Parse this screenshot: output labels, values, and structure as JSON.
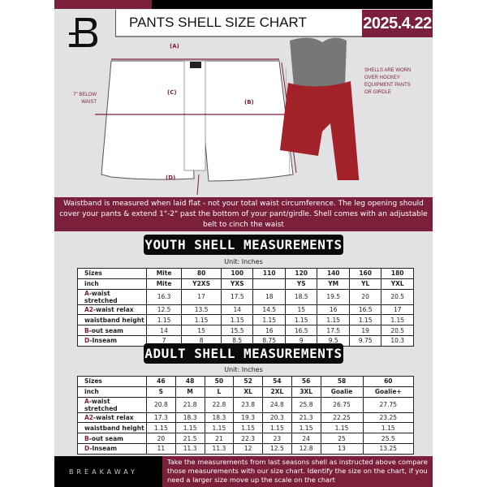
{
  "header": {
    "title": "PANTS SHELL SIZE CHART",
    "date": "2025.4.22"
  },
  "diagram": {
    "label_a": "(A)",
    "label_b": "(B)",
    "label_c": "(C)",
    "label_d": "(D)",
    "below_waist": "7\" BELOW WAIST",
    "worn_note": "SHELLS ARE WORN OVER HOCKEY EQUIPMENT PANTS OR GIRDLE"
  },
  "band_text": "Waistband is measured when laid flat - not your total waist circumference. The leg opening should cover your pants & extend 1\"-2\" past the bottom of your pant/girdle. Shell comes with an adjustable belt to cinch the waist",
  "colors": {
    "accent": "#7c1f3a",
    "background": "#e2e2e4"
  },
  "youth": {
    "title": "YOUTH SHELL MEASUREMENTS",
    "unit": "Unit: Inches",
    "rows": [
      {
        "prefix": "",
        "label": "Sizes",
        "values": [
          "Mite",
          "80",
          "100",
          "110",
          "120",
          "140",
          "160",
          "180"
        ]
      },
      {
        "prefix": "",
        "label": "inch",
        "values": [
          "Mite",
          "Y2XS",
          "YXS",
          "",
          "YS",
          "YM",
          "YL",
          "YXL"
        ]
      },
      {
        "prefix": "A",
        "label": "-waist stretched",
        "values": [
          "16.3",
          "17",
          "17.5",
          "18",
          "18.5",
          "19.5",
          "20",
          "20.5"
        ]
      },
      {
        "prefix": "A2",
        "label": "-waist relax",
        "values": [
          "12.5",
          "13.5",
          "14",
          "14.5",
          "15",
          "16",
          "16.5",
          "17"
        ]
      },
      {
        "prefix": "",
        "label": "waistband height",
        "values": [
          "1.15",
          "1.15",
          "1.15",
          "1.15",
          "1.15",
          "1.15",
          "1.15",
          "1.15"
        ]
      },
      {
        "prefix": "B",
        "label": "-out seam",
        "values": [
          "14",
          "15",
          "15.5",
          "16",
          "16.5",
          "17.5",
          "19",
          "20.5"
        ]
      },
      {
        "prefix": "D",
        "label": "-Inseam",
        "values": [
          "7",
          "8",
          "8.5",
          "8.75",
          "9",
          "9.5",
          "9.75",
          "10.3"
        ]
      }
    ]
  },
  "adult": {
    "title": "ADULT SHELL MEASUREMENTS",
    "unit": "Unit: Inches",
    "rows": [
      {
        "prefix": "",
        "label": "Sizes",
        "values": [
          "46",
          "48",
          "50",
          "52",
          "54",
          "56",
          "58",
          "60"
        ]
      },
      {
        "prefix": "",
        "label": "inch",
        "values": [
          "S",
          "M",
          "L",
          "XL",
          "2XL",
          "3XL",
          "Goalie",
          "Goalie+"
        ]
      },
      {
        "prefix": "A",
        "label": "-waist stretched",
        "values": [
          "20.8",
          "21.8",
          "22.8",
          "23.8",
          "24.8",
          "25.8",
          "26.75",
          "27.75"
        ]
      },
      {
        "prefix": "A2",
        "label": "-waist relax",
        "values": [
          "17.3",
          "18.3",
          "18.3",
          "19.3",
          "20.3",
          "21.3",
          "22.25",
          "23.25"
        ]
      },
      {
        "prefix": "",
        "label": "waistband height",
        "values": [
          "1.15",
          "1.15",
          "1.15",
          "1.15",
          "1.15",
          "1.15",
          "1.15",
          "1.15"
        ]
      },
      {
        "prefix": "B",
        "label": "-out seam",
        "values": [
          "20",
          "21.5",
          "21",
          "22.3",
          "23",
          "24",
          "25",
          "25.5"
        ]
      },
      {
        "prefix": "D",
        "label": "-Inseam",
        "values": [
          "11",
          "11.3",
          "11.3",
          "12",
          "12.5",
          "12.8",
          "13",
          "13.25"
        ]
      }
    ]
  },
  "footer": {
    "brand": "BREAKAWAY",
    "text": "Take the measurements from last seasons shell as instructed above compare those measurements  with our size chart. Identify the size on the chart, if you need a larger size move up the scale on the chart"
  }
}
